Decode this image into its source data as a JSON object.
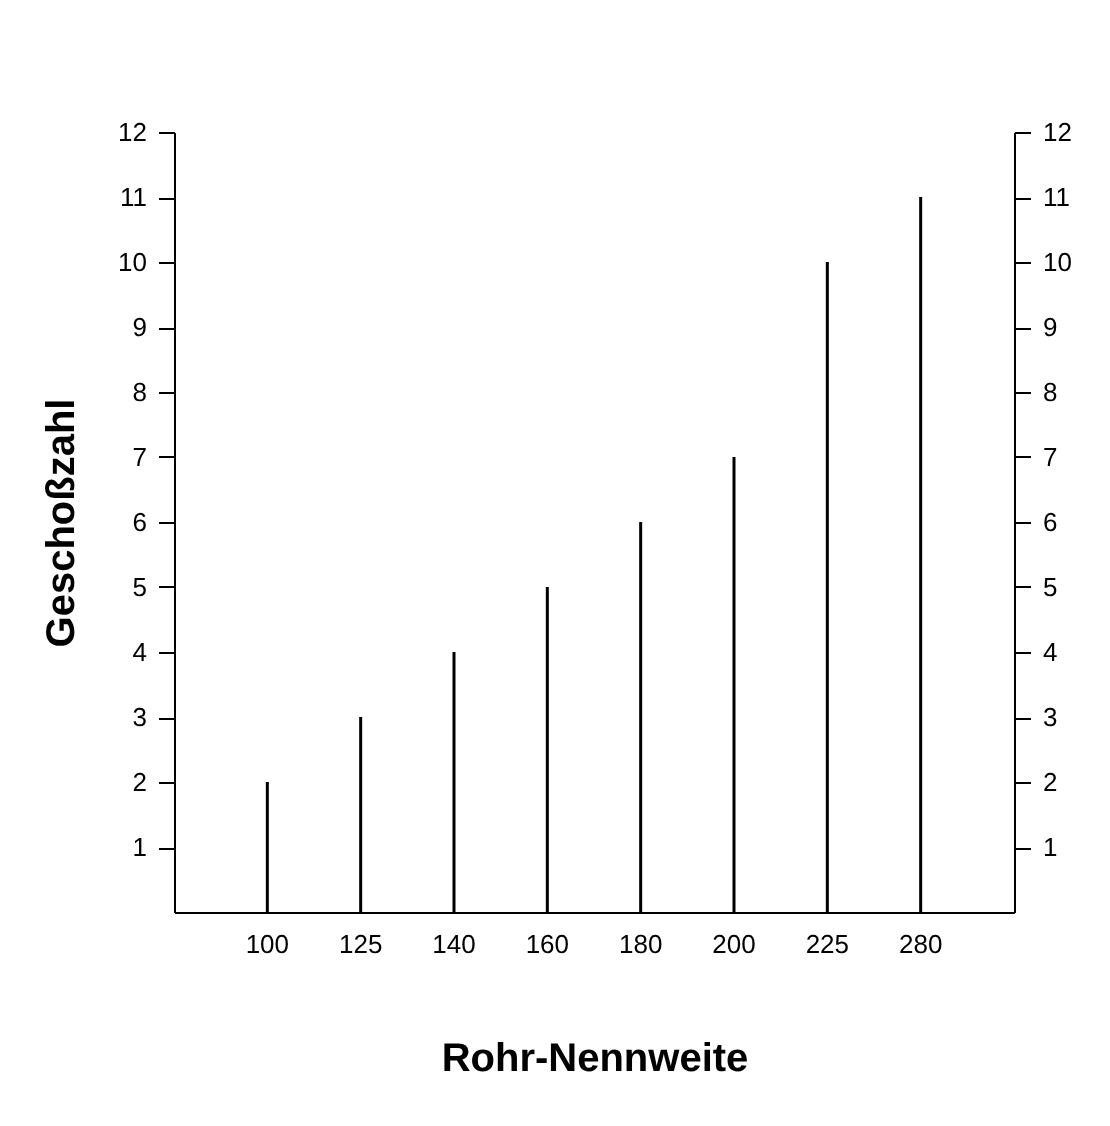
{
  "chart_data": {
    "type": "bar",
    "xlabel": "Rohr-Nennweite",
    "ylabel": "Geschoßzahl",
    "categories": [
      "100",
      "125",
      "140",
      "160",
      "180",
      "200",
      "225",
      "280"
    ],
    "values": [
      2,
      3,
      4,
      5,
      6,
      7,
      10,
      11
    ],
    "color": "#000000",
    "ylim": [
      0,
      12
    ],
    "yticks": [
      1,
      2,
      3,
      4,
      5,
      6,
      7,
      8,
      9,
      10,
      11,
      12
    ],
    "y2lim": [
      0,
      12
    ],
    "y2ticks": [
      1,
      2,
      3,
      4,
      5,
      6,
      7,
      8,
      9,
      10,
      11,
      12
    ],
    "grid": false
  }
}
